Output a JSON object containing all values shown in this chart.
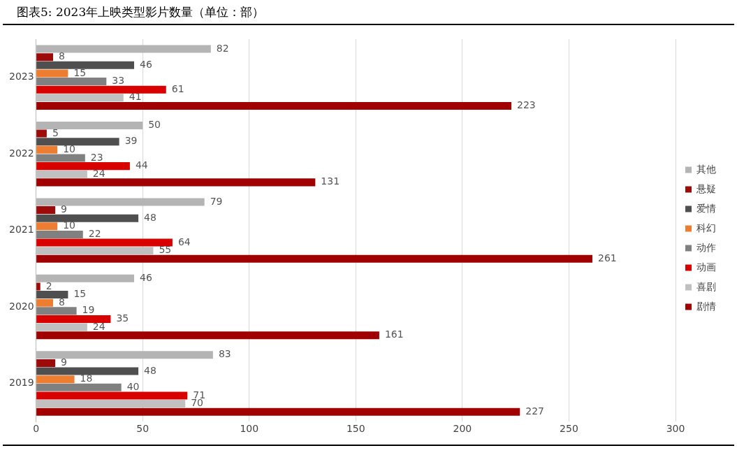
{
  "chart_data": {
    "type": "bar",
    "orientation": "horizontal",
    "title": "图表5:   2023年上映类型影片数量（单位：部）",
    "categories": [
      "2023",
      "2022",
      "2021",
      "2020",
      "2019"
    ],
    "series": [
      {
        "name": "其他",
        "color": "#b4b4b4",
        "values": [
          82,
          50,
          79,
          46,
          83
        ]
      },
      {
        "name": "悬疑",
        "color": "#9c0a0a",
        "values": [
          8,
          5,
          9,
          2,
          9
        ]
      },
      {
        "name": "爱情",
        "color": "#4f4f4f",
        "values": [
          46,
          39,
          48,
          15,
          48
        ]
      },
      {
        "name": "科幻",
        "color": "#ed7d31",
        "values": [
          15,
          10,
          10,
          8,
          18
        ]
      },
      {
        "name": "动作",
        "color": "#808080",
        "values": [
          33,
          23,
          22,
          19,
          40
        ]
      },
      {
        "name": "动画",
        "color": "#d90000",
        "values": [
          61,
          44,
          64,
          35,
          71
        ]
      },
      {
        "name": "喜剧",
        "color": "#c0c0c0",
        "values": [
          41,
          24,
          55,
          24,
          70
        ]
      },
      {
        "name": "剧情",
        "color": "#a00000",
        "values": [
          223,
          131,
          261,
          161,
          227
        ]
      }
    ],
    "xlim": [
      0,
      300
    ],
    "xticks": [
      0,
      50,
      100,
      150,
      200,
      250,
      300
    ],
    "grid": "x",
    "legend": "right",
    "data_labels": true
  }
}
